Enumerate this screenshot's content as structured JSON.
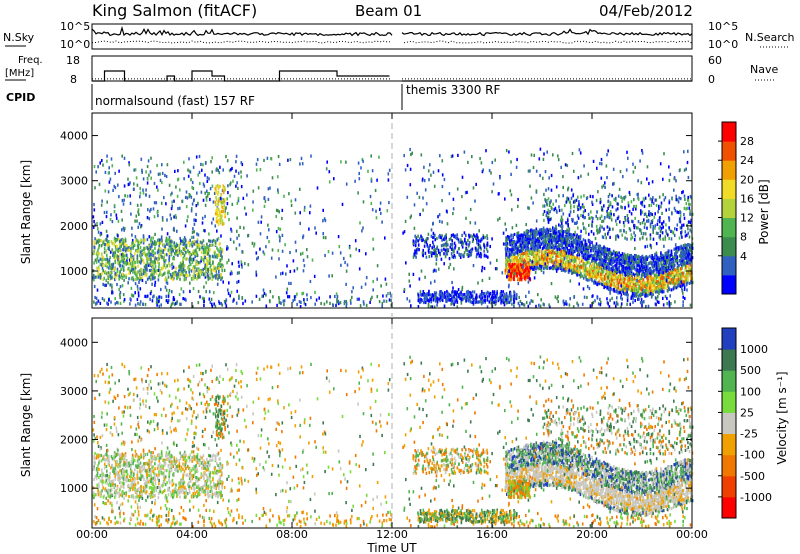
{
  "header": {
    "station": "King Salmon (fitACF)",
    "beam": "Beam 01",
    "date": "04/Feb/2012"
  },
  "side_labels": {
    "nsky": "N.Sky",
    "nsky_ticks": [
      "10^5",
      "10^0"
    ],
    "nsearch": "N.Search",
    "nsearch_ticks": [
      "10^5",
      "10^0"
    ],
    "freq": "Freq.",
    "freq_unit": "[MHz]",
    "freq_ticks": [
      "18",
      "8"
    ],
    "nave": "Nave",
    "nave_ticks": [
      "60",
      "0"
    ],
    "cpid": "CPID"
  },
  "cpid": {
    "left": "normalsound (fast) 157 RF",
    "right": "themis 3300 RF"
  },
  "range_axis": {
    "label": "Slant Range [km]",
    "ticks": [
      "4000",
      "3000",
      "2000",
      "1000"
    ]
  },
  "time_axis": {
    "label": "Time UT",
    "ticks": [
      "00:00",
      "04:00",
      "08:00",
      "12:00",
      "16:00",
      "20:00",
      "00:00"
    ]
  },
  "power_scale": {
    "label": "Power [dB]",
    "ticks": [
      "28",
      "24",
      "20",
      "16",
      "12",
      "8",
      "4"
    ],
    "colors": [
      "#0000ff",
      "#3060c0",
      "#3c8c50",
      "#50b450",
      "#b4d23c",
      "#f0dc28",
      "#f0a000",
      "#f05000",
      "#ff0000"
    ]
  },
  "velocity_scale": {
    "label": "Velocity [m s⁻¹]",
    "ticks": [
      "1000",
      "500",
      "100",
      "25",
      "-25",
      "-100",
      "-500",
      "-1000"
    ],
    "colors": [
      "#2040c0",
      "#3c7850",
      "#50b450",
      "#78dc3c",
      "#c8c8c0",
      "#f0a000",
      "#f07800",
      "#f04000",
      "#ff0000"
    ]
  },
  "chart_data": [
    {
      "type": "line",
      "panel": "noise",
      "series": [
        {
          "name": "N.Sky",
          "style": "solid"
        },
        {
          "name": "N.Search",
          "style": "dotted"
        }
      ],
      "xlim": [
        0,
        24
      ],
      "gap": [
        12,
        12.4
      ]
    },
    {
      "type": "line",
      "panel": "frequency",
      "x": [
        0,
        0.5,
        0.5,
        1.3,
        1.3,
        3.0,
        3.0,
        3.3,
        3.3,
        4.0,
        4.0,
        4.8,
        4.8,
        5.3,
        5.3,
        7.5,
        7.5,
        9.8,
        9.8,
        11.9,
        12.4,
        24
      ],
      "y": [
        8,
        8,
        12,
        12,
        8,
        8,
        10,
        10,
        8,
        8,
        12,
        12,
        10,
        10,
        8,
        8,
        12,
        12,
        10,
        10,
        8,
        8
      ],
      "ylim": [
        8,
        18
      ],
      "nave": 5
    },
    {
      "type": "heatmap",
      "panel": "power",
      "xlim": [
        0,
        24
      ],
      "ylim": [
        180,
        4500
      ],
      "xlabel": "Time UT",
      "ylabel": "Slant Range [km]",
      "clabel": "Power [dB]",
      "crange": [
        0,
        30
      ]
    },
    {
      "type": "heatmap",
      "panel": "velocity",
      "xlim": [
        0,
        24
      ],
      "ylim": [
        180,
        4500
      ],
      "xlabel": "Time UT",
      "ylabel": "Slant Range [km]",
      "clabel": "Velocity [m s⁻¹]",
      "crange": [
        -1000,
        1000
      ]
    }
  ]
}
